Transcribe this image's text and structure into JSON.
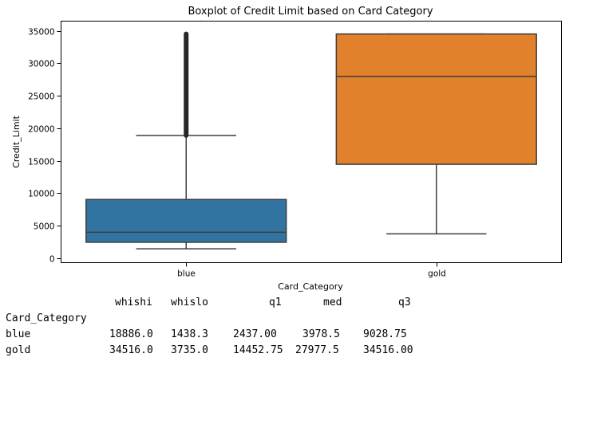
{
  "chart_data": {
    "type": "box",
    "title": "Boxplot of Credit Limit based on Card Category",
    "xlabel": "Card_Category",
    "ylabel": "Credit_Limit",
    "ylim": [
      -700,
      36500
    ],
    "yticks": [
      0,
      5000,
      10000,
      15000,
      20000,
      25000,
      30000,
      35000
    ],
    "categories": [
      "blue",
      "gold"
    ],
    "colors": {
      "blue": "#3274a1",
      "gold": "#e1812c"
    },
    "boxes": [
      {
        "category": "blue",
        "whislo": 1438.3,
        "q1": 2437.0,
        "med": 3978.5,
        "q3": 9028.75,
        "whishi": 18886.0,
        "fliers_range": [
          18900,
          34516
        ]
      },
      {
        "category": "gold",
        "whislo": 3735.0,
        "q1": 14452.75,
        "med": 27977.5,
        "q3": 34516.0,
        "whishi": 34516.0,
        "fliers_range": []
      }
    ]
  },
  "stats_table": {
    "columns": [
      "whishi",
      "whislo",
      "q1",
      "med",
      "q3"
    ],
    "index_name": "Card_Category",
    "rows": [
      {
        "label": "blue",
        "values": [
          "18886.0",
          "1438.3",
          "2437.00",
          "3978.5",
          "9028.75"
        ]
      },
      {
        "label": "gold",
        "values": [
          "34516.0",
          "3735.0",
          "14452.75",
          "27977.5",
          "34516.00"
        ]
      }
    ]
  }
}
